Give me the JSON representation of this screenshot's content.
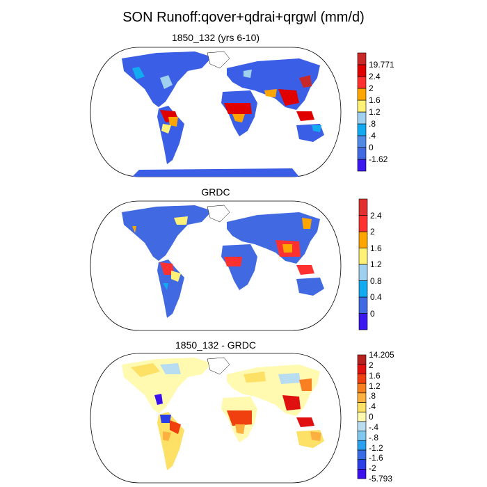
{
  "title": "SON Runoff:qover+qdrai+qrgwl (mm/d)",
  "panels": [
    {
      "title": "1850_132 (yrs 6-10)",
      "colorbar": {
        "colors": [
          "#3b18f0",
          "#4169e1",
          "#4f8be6",
          "#12aaf0",
          "#a0d0ef",
          "#fff176",
          "#ffa500",
          "#ff3030",
          "#e00000",
          "#c82828"
        ],
        "labels": [
          "-1.62",
          "0",
          ".4",
          ".8",
          "1.2",
          "1.6",
          "2",
          "2.4",
          "19.771"
        ]
      }
    },
    {
      "title": "GRDC",
      "colorbar": {
        "colors": [
          "#3b18f0",
          "#4169e1",
          "#12aaf0",
          "#a0d0ef",
          "#fff176",
          "#ffa500",
          "#ff3030",
          "#e03030"
        ],
        "labels": [
          "0",
          "0.4",
          "0.8",
          "1.2",
          "1.6",
          "2",
          "2.4"
        ]
      }
    },
    {
      "title": "1850_132 - GRDC",
      "colorbar": {
        "colors": [
          "#3a0ff0",
          "#2a3ee8",
          "#3a6ce6",
          "#2a9ff0",
          "#7ec8f0",
          "#b8ddf0",
          "#fffab0",
          "#fde066",
          "#fbb040",
          "#f88020",
          "#f04010",
          "#e01010",
          "#b82020"
        ],
        "labels": [
          "-5.793",
          "-2",
          "-1.6",
          "-1.2",
          "-.8",
          "-.4",
          "0",
          ".4",
          ".8",
          "1.2",
          "1.6",
          "2",
          "14.205"
        ]
      }
    }
  ]
}
